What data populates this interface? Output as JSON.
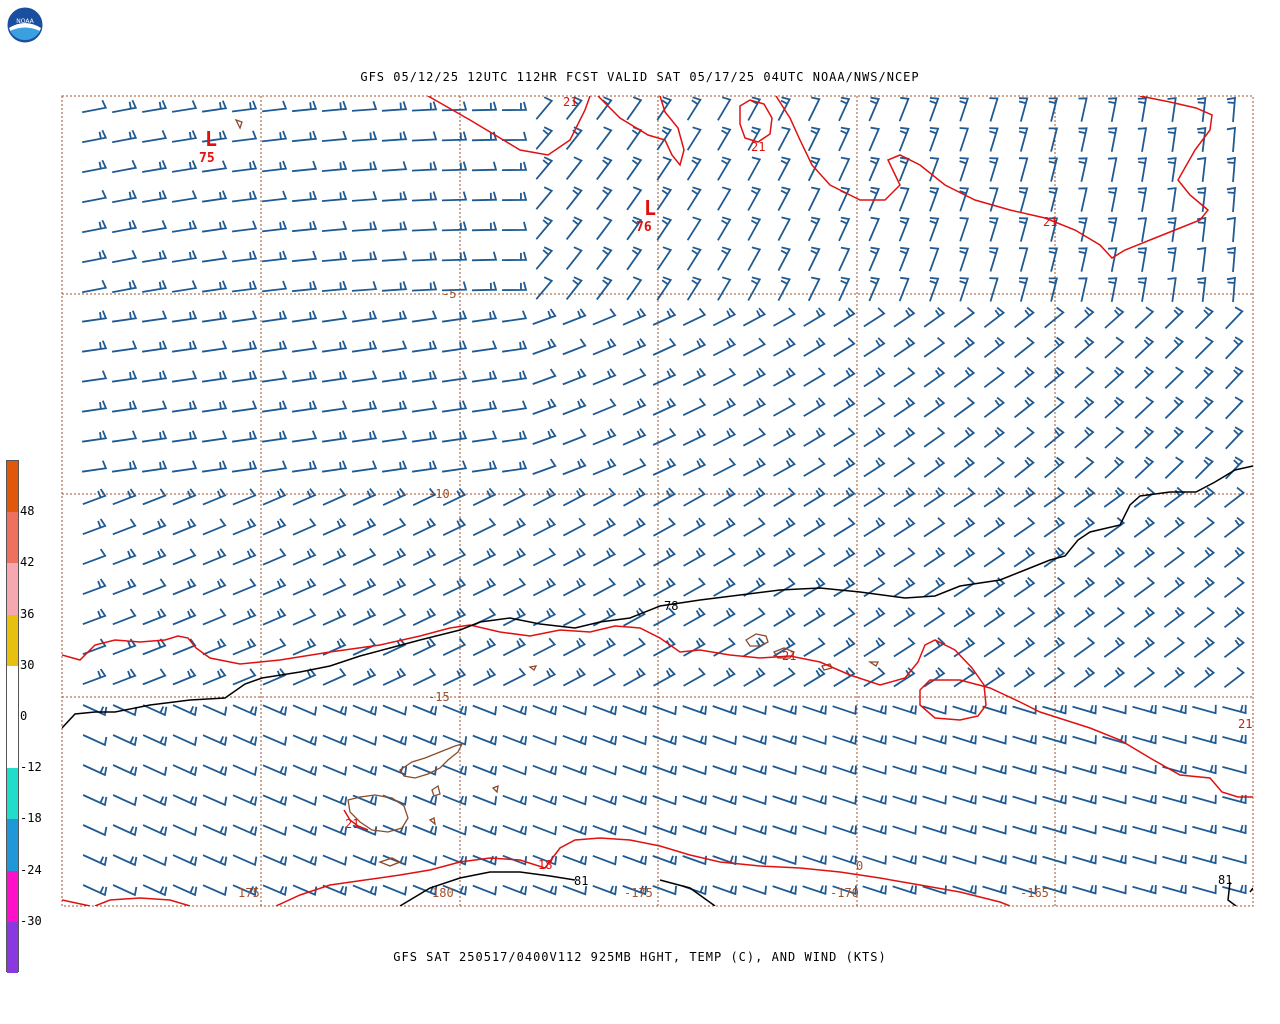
{
  "header": {
    "title": "GFS 05/12/25 12UTC 112HR FCST VALID SAT 05/17/25 04UTC NOAA/NWS/NCEP"
  },
  "footer": {
    "title": "GFS SAT 250517/0400V112 925MB HGHT, TEMP (C), AND WIND (KTS)"
  },
  "logo": {
    "name": "noaa-logo",
    "text": "NOAA"
  },
  "colors": {
    "barb": "#1f5a93",
    "temp_contour": "#e01010",
    "height_contour": "#000000",
    "coast": "#8b4a2b",
    "grid": "#a0522d",
    "label_brown": "#a0522d"
  },
  "colorbar": {
    "segments": [
      {
        "color": "#e2580a"
      },
      {
        "color": "#f07060"
      },
      {
        "color": "#f5a8b0"
      },
      {
        "color": "#e8c010"
      },
      {
        "color": "#ffffff"
      },
      {
        "color": "#ffffff"
      },
      {
        "color": "#22dccc"
      },
      {
        "color": "#2098d8"
      },
      {
        "color": "#ff10c8"
      },
      {
        "color": "#8a38e0"
      }
    ],
    "labels": [
      "48",
      "42",
      "36",
      "30",
      "0",
      "-12",
      "-18",
      "-24",
      "-30"
    ]
  },
  "pressure_centers": [
    {
      "symbol": "L",
      "value": "75"
    },
    {
      "symbol": "L",
      "value": "76"
    }
  ],
  "latitude_labels": [
    "-5",
    "-10",
    "-15"
  ],
  "longitude_labels": [
    "175",
    "180",
    "-175",
    "-170",
    "-165"
  ],
  "temp_contour_labels": [
    "21",
    "21",
    "21",
    "21",
    "21",
    "18",
    "21"
  ],
  "height_contour_labels": [
    "78",
    "81",
    "81"
  ],
  "misc_labels": [
    "0"
  ]
}
